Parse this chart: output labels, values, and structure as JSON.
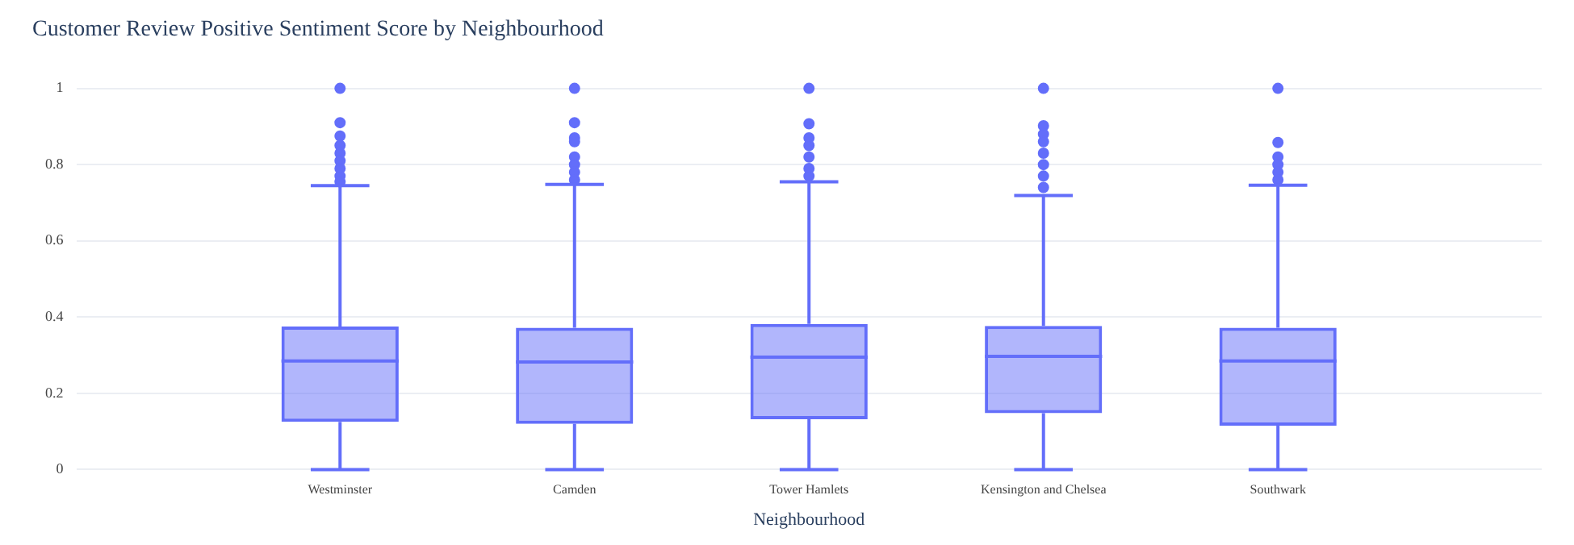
{
  "chart_data": {
    "type": "box",
    "title": "Customer Review Positive Sentiment Score by Neighbourhood",
    "xlabel": "Neighbourhood",
    "categories": [
      "Westminster",
      "Camden",
      "Tower Hamlets",
      "Kensington and Chelsea",
      "Southwark"
    ],
    "color": "#636efa",
    "boxes": [
      {
        "low": 0,
        "q1": 0.125,
        "median": 0.285,
        "q3": 0.375,
        "high": 0.745,
        "outliers": [
          1,
          0.91,
          0.875,
          0.85,
          0.83,
          0.81,
          0.79,
          0.77,
          0.755
        ]
      },
      {
        "low": 0,
        "q1": 0.12,
        "median": 0.282,
        "q3": 0.372,
        "high": 0.748,
        "outliers": [
          1,
          0.91,
          0.87,
          0.86,
          0.82,
          0.8,
          0.78,
          0.76
        ]
      },
      {
        "low": 0,
        "q1": 0.132,
        "median": 0.295,
        "q3": 0.382,
        "high": 0.755,
        "outliers": [
          1,
          0.907,
          0.87,
          0.85,
          0.82,
          0.79,
          0.77
        ]
      },
      {
        "low": 0,
        "q1": 0.148,
        "median": 0.297,
        "q3": 0.377,
        "high": 0.719,
        "outliers": [
          1,
          0.902,
          0.88,
          0.86,
          0.83,
          0.8,
          0.77,
          0.74
        ]
      },
      {
        "low": 0,
        "q1": 0.115,
        "median": 0.285,
        "q3": 0.372,
        "high": 0.746,
        "outliers": [
          1,
          0.858,
          0.82,
          0.8,
          0.78,
          0.76
        ]
      }
    ],
    "ylim": [
      0,
      1
    ],
    "yticks": [
      0,
      0.2,
      0.4,
      0.6,
      0.8,
      1
    ],
    "grid": "y",
    "legend": false
  }
}
